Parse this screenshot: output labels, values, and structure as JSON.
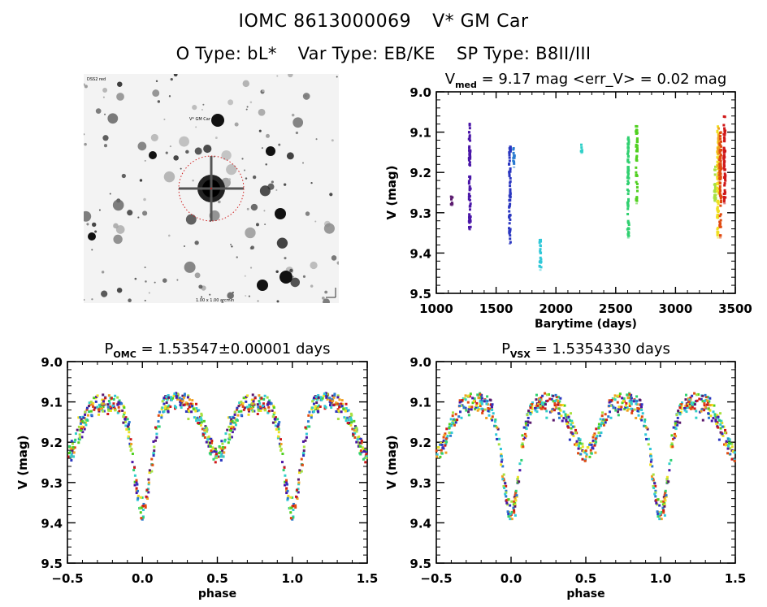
{
  "header": {
    "object_id": "IOMC 8613000069",
    "star_name": "V* GM Car",
    "o_type_label": "O Type: bL*",
    "var_type_label": "Var Type: EB/KE",
    "sp_type_label": "SP Type: B8II/III"
  },
  "sky_image": {
    "description": "DSS-style greyscale finder chart with dotted red circle centered on target star",
    "circle_color": "#d02020",
    "top_left_label": "DSS2 red",
    "target_label": "V* GM Car",
    "bottom_label": "1.00 x 1.00 arcmin"
  },
  "chart_data": [
    {
      "id": "timeseries",
      "type": "scatter",
      "title_main": "V",
      "title_sub": "med",
      "title_rest": " = 9.17 mag <err_V> = 0.02 mag",
      "xlabel": "Barytime (days)",
      "ylabel": "V (mag)",
      "xlim": [
        1000,
        3500
      ],
      "ylim": [
        9.5,
        9.0
      ],
      "xticks": [
        1000,
        1500,
        2000,
        2500,
        3000,
        3500
      ],
      "xtick_labels": [
        "1000",
        "1500",
        "2000",
        "2500",
        "3000",
        "3500"
      ],
      "yticks": [
        9.0,
        9.1,
        9.2,
        9.3,
        9.4,
        9.5
      ],
      "ytick_labels": [
        "9.0",
        "9.1",
        "9.2",
        "9.3",
        "9.4",
        "9.5"
      ],
      "grid": false,
      "series": [
        {
          "name": "g1",
          "color": "#5a1a6e",
          "x": 1130,
          "ymin": 9.26,
          "ymax": 9.28
        },
        {
          "name": "g2",
          "color": "#4a16a8",
          "x": 1280,
          "ymin": 9.075,
          "ymax": 9.34
        },
        {
          "name": "g3",
          "color": "#2a36c0",
          "x": 1615,
          "ymin": 9.13,
          "ymax": 9.375
        },
        {
          "name": "g4",
          "color": "#2a7ad0",
          "x": 1650,
          "ymin": 9.14,
          "ymax": 9.185
        },
        {
          "name": "g5",
          "color": "#30c8d8",
          "x": 1870,
          "ymin": 9.365,
          "ymax": 9.44
        },
        {
          "name": "g6",
          "color": "#30d0c8",
          "x": 2215,
          "ymin": 9.13,
          "ymax": 9.15
        },
        {
          "name": "g7",
          "color": "#30d070",
          "x": 2605,
          "ymin": 9.11,
          "ymax": 9.36
        },
        {
          "name": "g8",
          "color": "#50d020",
          "x": 2675,
          "ymin": 9.085,
          "ymax": 9.275
        },
        {
          "name": "g9",
          "color": "#a8e040",
          "x": 3330,
          "ymin": 9.185,
          "ymax": 9.27
        },
        {
          "name": "g10",
          "color": "#f0e020",
          "x": 3355,
          "ymin": 9.085,
          "ymax": 9.36
        },
        {
          "name": "g11",
          "color": "#f0a020",
          "x": 3362,
          "ymin": 9.09,
          "ymax": 9.22
        },
        {
          "name": "g12",
          "color": "#e04a10",
          "x": 3375,
          "ymin": 9.1,
          "ymax": 9.36
        },
        {
          "name": "g13",
          "color": "#d01818",
          "x": 3410,
          "ymin": 9.055,
          "ymax": 9.275
        }
      ]
    },
    {
      "id": "phase-omc",
      "type": "scatter",
      "title_main": "P",
      "title_sub": "OMC",
      "title_rest": " = 1.53547±0.00001 days",
      "xlabel": "phase",
      "ylabel": "V (mag)",
      "xlim": [
        -0.5,
        1.5
      ],
      "ylim": [
        9.5,
        9.0
      ],
      "xticks": [
        -0.5,
        0.0,
        0.5,
        1.0,
        1.5
      ],
      "xtick_labels": [
        "−0.5",
        "0.0",
        "0.5",
        "1.0",
        "1.5"
      ],
      "yticks": [
        9.0,
        9.1,
        9.2,
        9.3,
        9.4,
        9.5
      ],
      "ytick_labels": [
        "9.0",
        "9.1",
        "9.2",
        "9.3",
        "9.4",
        "9.5"
      ],
      "grid": false,
      "light_curve": {
        "max_mag": 9.1,
        "primary_min_phase": 0.0,
        "primary_min_mag": 9.37,
        "secondary_min_phase": 0.5,
        "secondary_min_mag": 9.23
      }
    },
    {
      "id": "phase-vsx",
      "type": "scatter",
      "title_main": "P",
      "title_sub": "VSX",
      "title_rest": " = 1.5354330 days",
      "xlabel": "phase",
      "ylabel": "V (mag)",
      "xlim": [
        -0.5,
        1.5
      ],
      "ylim": [
        9.5,
        9.0
      ],
      "xticks": [
        -0.5,
        0.0,
        0.5,
        1.0,
        1.5
      ],
      "xtick_labels": [
        "−0.5",
        "0.0",
        "0.5",
        "1.0",
        "1.5"
      ],
      "yticks": [
        9.0,
        9.1,
        9.2,
        9.3,
        9.4,
        9.5
      ],
      "ytick_labels": [
        "9.0",
        "9.1",
        "9.2",
        "9.3",
        "9.4",
        "9.5"
      ],
      "grid": false,
      "light_curve": {
        "max_mag": 9.1,
        "primary_min_phase": 0.0,
        "primary_min_mag": 9.37,
        "secondary_min_phase": 0.5,
        "secondary_min_mag": 9.23
      }
    }
  ]
}
